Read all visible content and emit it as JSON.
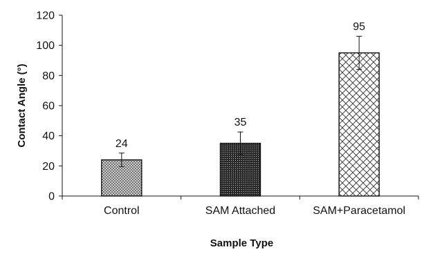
{
  "chart_data": {
    "type": "bar",
    "categories": [
      "Control",
      "SAM Attached",
      "SAM+Paracetamol"
    ],
    "values": [
      24,
      35,
      95
    ],
    "data_labels": [
      "24",
      "35",
      "95"
    ],
    "error": [
      4.5,
      7.5,
      11
    ],
    "xlabel": "Sample Type",
    "ylabel": "Contact Angle (°)",
    "ylim": [
      0,
      120
    ],
    "yticks": [
      0,
      20,
      40,
      60,
      80,
      100,
      120
    ],
    "ytick_labels": [
      "0",
      "20",
      "40",
      "60",
      "80",
      "100",
      "120"
    ],
    "grid": false,
    "legend": "none",
    "bar_patterns": [
      "fine-crosshatch",
      "dense-dots",
      "diagonal-crosshatch"
    ],
    "bar_outline_color": "#111111"
  }
}
